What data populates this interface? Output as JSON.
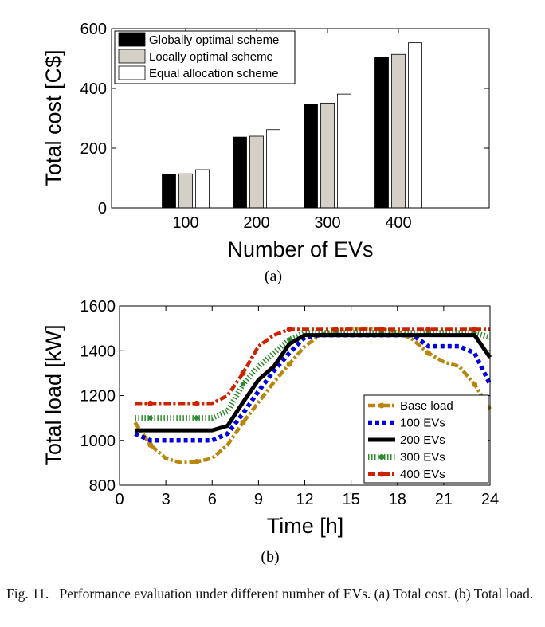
{
  "chart_data": [
    {
      "type": "bar",
      "panel_label": "(a)",
      "title": "",
      "xlabel": "Number of EVs",
      "ylabel": "Total cost [C$]",
      "categories": [
        "100",
        "200",
        "300",
        "400"
      ],
      "ylim": [
        0,
        600
      ],
      "yticks": [
        "0",
        "200",
        "400",
        "600"
      ],
      "legend_position": "top-left",
      "series": [
        {
          "name": "Globally optimal scheme",
          "color": "#000000",
          "values": [
            113,
            237,
            348,
            504
          ]
        },
        {
          "name": "Locally optimal scheme",
          "color": "#d4d0c8",
          "values": [
            114,
            240,
            351,
            514
          ]
        },
        {
          "name": "Equal allocation scheme",
          "color": "#ffffff",
          "values": [
            128,
            262,
            381,
            553
          ]
        }
      ]
    },
    {
      "type": "line",
      "panel_label": "(b)",
      "title": "",
      "xlabel": "Time [h]",
      "ylabel": "Total load [kW]",
      "xlim": [
        0,
        24
      ],
      "ylim": [
        800,
        1600
      ],
      "xticks": [
        "0",
        "3",
        "6",
        "9",
        "12",
        "15",
        "18",
        "21",
        "24"
      ],
      "yticks": [
        "800",
        "1000",
        "1200",
        "1400",
        "1600"
      ],
      "legend_position": "bottom-right",
      "series": [
        {
          "name": "Base load",
          "color": "#b8860b",
          "style": "dashdot-dot",
          "x": [
            1,
            2,
            3,
            4,
            5,
            6,
            7,
            8,
            9,
            10,
            11,
            12,
            13,
            14,
            15,
            16,
            17,
            18,
            19,
            20,
            21,
            22,
            23,
            24
          ],
          "y": [
            1080,
            980,
            920,
            900,
            905,
            920,
            980,
            1080,
            1170,
            1260,
            1340,
            1420,
            1470,
            1490,
            1500,
            1500,
            1495,
            1485,
            1450,
            1390,
            1350,
            1330,
            1250,
            1140
          ]
        },
        {
          "name": "100 EVs",
          "color": "#0000e0",
          "style": "dotted",
          "x": [
            1,
            2,
            3,
            4,
            5,
            6,
            7,
            8,
            9,
            10,
            11,
            12,
            13,
            14,
            15,
            16,
            17,
            18,
            19,
            20,
            21,
            22,
            23,
            24
          ],
          "y": [
            1030,
            1000,
            1000,
            1000,
            1000,
            1000,
            1030,
            1120,
            1220,
            1310,
            1390,
            1460,
            1470,
            1470,
            1470,
            1470,
            1470,
            1470,
            1470,
            1420,
            1420,
            1420,
            1390,
            1250
          ]
        },
        {
          "name": "200 EVs",
          "color": "#000000",
          "style": "solid",
          "x": [
            1,
            2,
            3,
            4,
            5,
            6,
            7,
            8,
            9,
            10,
            11,
            12,
            13,
            14,
            15,
            16,
            17,
            18,
            19,
            20,
            21,
            22,
            23,
            24
          ],
          "y": [
            1045,
            1045,
            1045,
            1045,
            1045,
            1045,
            1065,
            1170,
            1270,
            1330,
            1430,
            1470,
            1470,
            1470,
            1470,
            1470,
            1470,
            1470,
            1470,
            1470,
            1470,
            1470,
            1470,
            1370
          ]
        },
        {
          "name": "300 EVs",
          "color": "#2e8b2e",
          "style": "dotted",
          "x": [
            1,
            2,
            3,
            4,
            5,
            6,
            7,
            8,
            9,
            10,
            11,
            12,
            13,
            14,
            15,
            16,
            17,
            18,
            19,
            20,
            21,
            22,
            23,
            24
          ],
          "y": [
            1100,
            1100,
            1100,
            1100,
            1100,
            1100,
            1130,
            1250,
            1330,
            1390,
            1450,
            1480,
            1480,
            1480,
            1480,
            1480,
            1480,
            1480,
            1480,
            1480,
            1480,
            1480,
            1480,
            1460
          ]
        },
        {
          "name": "400 EVs",
          "color": "#cc2200",
          "style": "dashdot-dot",
          "x": [
            1,
            2,
            3,
            4,
            5,
            6,
            7,
            8,
            9,
            10,
            11,
            12,
            13,
            14,
            15,
            16,
            17,
            18,
            19,
            20,
            21,
            22,
            23,
            24
          ],
          "y": [
            1165,
            1165,
            1165,
            1165,
            1165,
            1165,
            1200,
            1300,
            1420,
            1470,
            1495,
            1495,
            1495,
            1495,
            1495,
            1495,
            1495,
            1495,
            1495,
            1495,
            1495,
            1495,
            1495,
            1495
          ]
        }
      ]
    }
  ],
  "caption": {
    "prefix": "Fig. 11.",
    "text": "Performance evaluation under different number of EVs. (a) Total cost. (b) Total load."
  }
}
